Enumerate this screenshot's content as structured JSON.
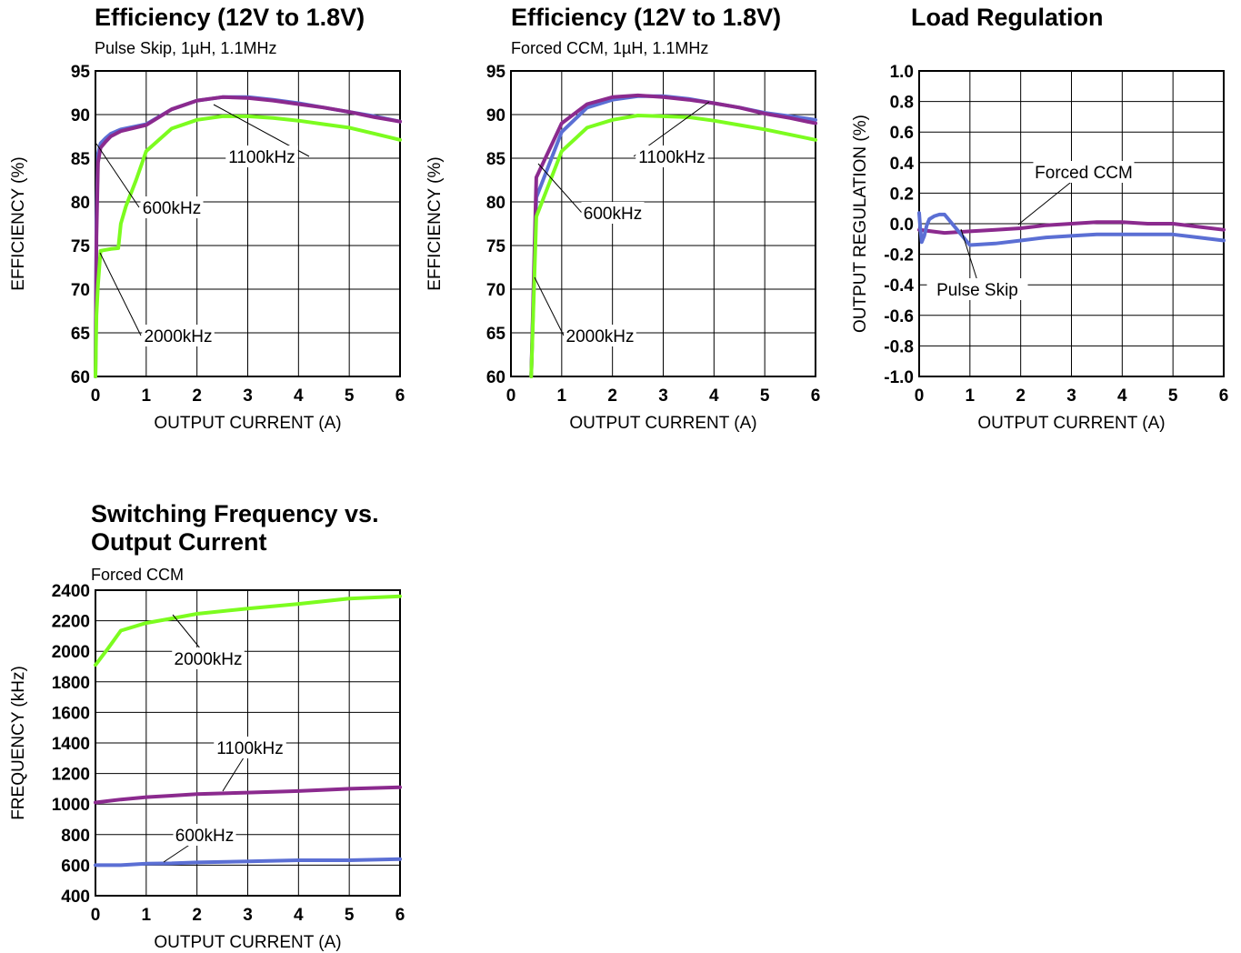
{
  "chart_data": [
    {
      "type": "line",
      "title": "Efficiency (12V to 1.8V)",
      "subtitle": "Pulse Skip,   1µH, 1.1MHz",
      "xlabel": "OUTPUT CURRENT (A)",
      "ylabel": "EFFICIENCY (%)",
      "xlim": [
        0,
        6
      ],
      "ylim": [
        60,
        95
      ],
      "xticks": [
        0,
        1,
        2,
        3,
        4,
        5,
        6
      ],
      "yticks": [
        60,
        65,
        70,
        75,
        80,
        85,
        90,
        95
      ],
      "grid": true,
      "series": [
        {
          "name": "600kHz",
          "color": "#5B6FD4",
          "x": [
            0,
            0.02,
            0.05,
            0.1,
            0.2,
            0.3,
            0.5,
            1.0,
            1.5,
            2.0,
            2.5,
            3.0,
            3.5,
            4.0,
            4.5,
            5.0,
            5.5,
            6.0
          ],
          "y": [
            60,
            78,
            85.5,
            86.7,
            87.3,
            87.8,
            88.3,
            88.9,
            90.6,
            91.6,
            92.0,
            92.0,
            91.7,
            91.3,
            90.8,
            90.3,
            89.8,
            89.2
          ]
        },
        {
          "name": "1100kHz",
          "color": "#8B2A8E",
          "x": [
            0,
            0.02,
            0.05,
            0.1,
            0.2,
            0.3,
            0.5,
            1.0,
            1.5,
            2.0,
            2.5,
            3.0,
            3.5,
            4.0,
            4.5,
            5.0,
            5.5,
            6.0
          ],
          "y": [
            60,
            76,
            84.5,
            86.2,
            86.9,
            87.5,
            88.1,
            88.8,
            90.6,
            91.6,
            92.0,
            91.9,
            91.6,
            91.2,
            90.8,
            90.3,
            89.7,
            89.2
          ]
        },
        {
          "name": "2000kHz",
          "color": "#7CFC1F",
          "x": [
            0,
            0.02,
            0.05,
            0.1,
            0.2,
            0.3,
            0.45,
            0.5,
            0.6,
            0.8,
            1.0,
            1.5,
            2.0,
            2.5,
            3.0,
            3.5,
            4.0,
            4.5,
            5.0,
            5.5,
            6.0
          ],
          "y": [
            60,
            67,
            70.5,
            74.4,
            74.5,
            74.6,
            74.7,
            77.5,
            79.5,
            82.5,
            85.8,
            88.4,
            89.4,
            89.8,
            89.8,
            89.6,
            89.3,
            88.9,
            88.5,
            87.8,
            87.1
          ]
        }
      ],
      "annotations": [
        "1100kHz",
        "600kHz",
        "2000kHz"
      ]
    },
    {
      "type": "line",
      "title": "Efficiency (12V to 1.8V)",
      "subtitle": "Forced CCM, 1µH, 1.1MHz",
      "xlabel": "OUTPUT CURRENT (A)",
      "ylabel": "EFFICIENCY (%)",
      "xlim": [
        0,
        6
      ],
      "ylim": [
        60,
        95
      ],
      "xticks": [
        0,
        1,
        2,
        3,
        4,
        5,
        6
      ],
      "yticks": [
        60,
        65,
        70,
        75,
        80,
        85,
        90,
        95
      ],
      "grid": true,
      "series": [
        {
          "name": "600kHz",
          "color": "#5B6FD4",
          "x": [
            0.4,
            0.5,
            1.0,
            1.5,
            2.0,
            2.5,
            3.0,
            3.5,
            4.0,
            4.5,
            5.0,
            5.5,
            6.0
          ],
          "y": [
            60,
            80.5,
            88.0,
            90.8,
            91.7,
            92.1,
            92.1,
            91.8,
            91.3,
            90.8,
            90.2,
            89.8,
            89.4
          ]
        },
        {
          "name": "1100kHz",
          "color": "#8B2A8E",
          "x": [
            0.4,
            0.5,
            1.0,
            1.5,
            2.0,
            2.5,
            3.0,
            3.5,
            4.0,
            4.5,
            5.0,
            5.5,
            6.0
          ],
          "y": [
            60,
            82.8,
            89.0,
            91.2,
            92.0,
            92.2,
            92.0,
            91.7,
            91.3,
            90.8,
            90.1,
            89.6,
            89.0
          ]
        },
        {
          "name": "2000kHz",
          "color": "#7CFC1F",
          "x": [
            0.4,
            0.5,
            1.0,
            1.5,
            2.0,
            2.5,
            3.0,
            3.5,
            4.0,
            4.5,
            5.0,
            5.5,
            6.0
          ],
          "y": [
            60,
            78.3,
            85.8,
            88.5,
            89.4,
            89.9,
            89.8,
            89.7,
            89.3,
            88.8,
            88.3,
            87.7,
            87.1
          ]
        }
      ],
      "annotations": [
        "1100kHz",
        "600kHz",
        "2000kHz"
      ]
    },
    {
      "type": "line",
      "title": "Load Regulation",
      "subtitle": "",
      "xlabel": "OUTPUT CURRENT (A)",
      "ylabel": "OUTPUT REGULATION (%)",
      "xlim": [
        0,
        6
      ],
      "ylim": [
        -1.0,
        1.0
      ],
      "xticks": [
        0,
        1,
        2,
        3,
        4,
        5,
        6
      ],
      "yticks": [
        "-1.0",
        "-0.8",
        "-0.6",
        "-0.4",
        "-0.2",
        "0.0",
        "0.2",
        "0.4",
        "0.6",
        "0.8",
        "1.0"
      ],
      "grid": true,
      "series": [
        {
          "name": "Forced CCM",
          "color": "#8B2A8E",
          "x": [
            0,
            0.5,
            1.0,
            1.5,
            2.0,
            2.5,
            3.0,
            3.5,
            4.0,
            4.5,
            5.0,
            5.5,
            6.0
          ],
          "y": [
            -0.04,
            -0.06,
            -0.05,
            -0.04,
            -0.03,
            -0.01,
            0.0,
            0.01,
            0.01,
            0.0,
            0.0,
            -0.02,
            -0.04
          ]
        },
        {
          "name": "Pulse Skip",
          "color": "#5B6FD4",
          "x": [
            0,
            0.02,
            0.05,
            0.1,
            0.15,
            0.2,
            0.3,
            0.4,
            0.5,
            0.7,
            1.0,
            1.5,
            2.0,
            2.5,
            3.0,
            3.5,
            4.0,
            4.5,
            5.0,
            5.5,
            6.0
          ],
          "y": [
            0.07,
            -0.02,
            -0.12,
            -0.08,
            -0.01,
            0.03,
            0.05,
            0.06,
            0.06,
            -0.02,
            -0.14,
            -0.13,
            -0.11,
            -0.09,
            -0.08,
            -0.07,
            -0.07,
            -0.07,
            -0.07,
            -0.09,
            -0.11
          ]
        }
      ],
      "annotations": [
        "Forced CCM",
        "Pulse Skip"
      ]
    },
    {
      "type": "line",
      "title": "Switching Frequency vs. Output Current",
      "subtitle": "Forced CCM",
      "xlabel": "OUTPUT CURRENT (A)",
      "ylabel": "FREQUENCY (kHz)",
      "xlim": [
        0,
        6
      ],
      "ylim": [
        400,
        2400
      ],
      "xticks": [
        0,
        1,
        2,
        3,
        4,
        5,
        6
      ],
      "yticks": [
        400,
        600,
        800,
        1000,
        1200,
        1400,
        1600,
        1800,
        2000,
        2200,
        2400
      ],
      "grid": true,
      "series": [
        {
          "name": "2000kHz",
          "color": "#7CFC1F",
          "x": [
            0,
            0.25,
            0.5,
            1.0,
            1.5,
            2.0,
            3.0,
            4.0,
            5.0,
            6.0
          ],
          "y": [
            1910,
            2020,
            2135,
            2185,
            2215,
            2245,
            2280,
            2310,
            2345,
            2360
          ]
        },
        {
          "name": "1100kHz",
          "color": "#8B2A8E",
          "x": [
            0,
            0.5,
            1.0,
            1.5,
            2.0,
            3.0,
            4.0,
            5.0,
            6.0
          ],
          "y": [
            1010,
            1030,
            1045,
            1055,
            1065,
            1075,
            1085,
            1100,
            1110
          ]
        },
        {
          "name": "600kHz",
          "color": "#5B6FD4",
          "x": [
            0,
            0.5,
            1.0,
            1.5,
            2.0,
            3.0,
            4.0,
            5.0,
            6.0
          ],
          "y": [
            600,
            600,
            610,
            612,
            618,
            625,
            632,
            632,
            640
          ]
        }
      ],
      "annotations": [
        "2000kHz",
        "1100kHz",
        "600kHz"
      ]
    }
  ]
}
